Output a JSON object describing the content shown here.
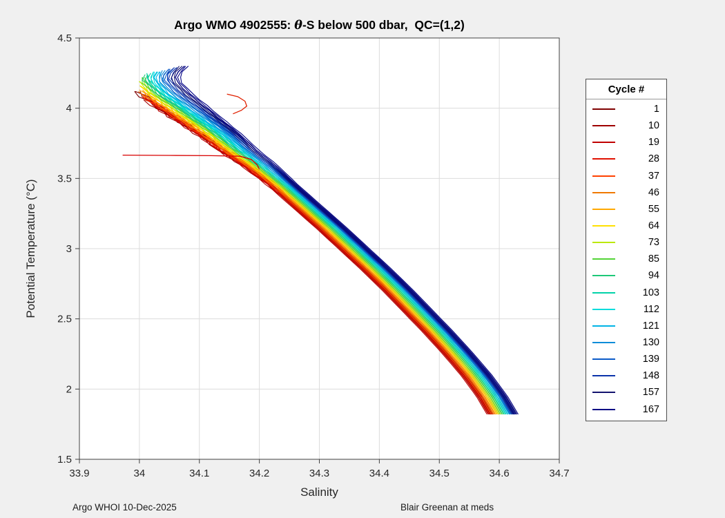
{
  "footer": {
    "left": "Argo WHOI 10-Dec-2025",
    "center_right": "Blair Greenan at meds"
  },
  "chart_data": {
    "type": "line",
    "title": "Argo WMO 4902555: θ-S below 500 dbar,  QC=(1,2)",
    "title_pre": "Argo WMO 4902555: ",
    "title_theta": "θ",
    "title_post": "-S below 500 dbar,  QC=(1,2)",
    "xlabel": "Salinity",
    "ylabel": "Potential Temperature (°C)",
    "xlim": [
      33.9,
      34.7
    ],
    "ylim": [
      1.5,
      4.5
    ],
    "grid": true,
    "legend_position": "right-outside",
    "legend_title": "Cycle #",
    "xticks": {
      "values": [
        33.9,
        34.0,
        34.1,
        34.2,
        34.3,
        34.4,
        34.5,
        34.6,
        34.7
      ],
      "labels": [
        "33.9",
        "34",
        "34.1",
        "34.2",
        "34.3",
        "34.4",
        "34.5",
        "34.6",
        "34.7"
      ]
    },
    "yticks": {
      "values": [
        1.5,
        2.0,
        2.5,
        3.0,
        3.5,
        4.0,
        4.5
      ],
      "labels": [
        "1.5",
        "2",
        "2.5",
        "3",
        "3.5",
        "4",
        "4.5"
      ]
    },
    "theta_grid": [
      4.3,
      4.25,
      4.2,
      4.1,
      4.0,
      3.9,
      3.8,
      3.7,
      3.6,
      3.45,
      3.3,
      3.15,
      3.0,
      2.85,
      2.7,
      2.55,
      2.4,
      2.25,
      2.1,
      1.95,
      1.82
    ],
    "s_ref": [
      34.02,
      34.008,
      34.005,
      34.028,
      34.062,
      34.096,
      34.13,
      34.16,
      34.195,
      34.24,
      34.28,
      34.32,
      34.358,
      34.396,
      34.432,
      34.466,
      34.5,
      34.532,
      34.562,
      34.588,
      34.606
    ],
    "series": [
      {
        "name": "1",
        "color": "#7F0000",
        "d_top": -0.028,
        "d_bot": -0.017,
        "top_theta": 4.12,
        "jitter": 0.007
      },
      {
        "name": "10",
        "color": "#9E0000",
        "d_top": -0.032,
        "d_bot": -0.021,
        "top_theta": 4.06,
        "jitter": 0.006
      },
      {
        "name": "19",
        "color": "#C00000",
        "d_top": -0.03,
        "d_bot": -0.023,
        "top_theta": 4.02,
        "jitter": 0.006
      },
      {
        "name": "28",
        "color": "#E01000",
        "d_top": -0.026,
        "d_bot": -0.019,
        "top_theta": 4.08,
        "jitter": 0.005
      },
      {
        "name": "37",
        "color": "#FF4000",
        "d_top": -0.024,
        "d_bot": -0.016,
        "top_theta": 4.1,
        "jitter": 0.005
      },
      {
        "name": "46",
        "color": "#F07800",
        "d_top": -0.02,
        "d_bot": -0.013,
        "top_theta": 4.12,
        "jitter": 0.004
      },
      {
        "name": "55",
        "color": "#FFA800",
        "d_top": -0.015,
        "d_bot": -0.01,
        "top_theta": 4.13,
        "jitter": 0.004
      },
      {
        "name": "64",
        "color": "#FFE000",
        "d_top": -0.01,
        "d_bot": -0.007,
        "top_theta": 4.16,
        "jitter": 0.003
      },
      {
        "name": "73",
        "color": "#BCE800",
        "d_top": -0.005,
        "d_bot": -0.004,
        "top_theta": 4.19,
        "jitter": 0.003
      },
      {
        "name": "85",
        "color": "#52D436",
        "d_top": 0.0,
        "d_bot": -0.001,
        "top_theta": 4.22,
        "jitter": 0.002
      },
      {
        "name": "94",
        "color": "#1EC878",
        "d_top": 0.005,
        "d_bot": 0.002,
        "top_theta": 4.24,
        "jitter": 0.002
      },
      {
        "name": "103",
        "color": "#00D2A8",
        "d_top": 0.01,
        "d_bot": 0.005,
        "top_theta": 4.25,
        "jitter": 0.002
      },
      {
        "name": "112",
        "color": "#00DCDC",
        "d_top": 0.016,
        "d_bot": 0.008,
        "top_theta": 4.26,
        "jitter": 0.0015
      },
      {
        "name": "121",
        "color": "#00B4E6",
        "d_top": 0.022,
        "d_bot": 0.011,
        "top_theta": 4.26,
        "jitter": 0.0015
      },
      {
        "name": "130",
        "color": "#0A8CD8",
        "d_top": 0.03,
        "d_bot": 0.014,
        "top_theta": 4.27,
        "jitter": 0.001
      },
      {
        "name": "139",
        "color": "#0A5AC8",
        "d_top": 0.037,
        "d_bot": 0.016,
        "top_theta": 4.28,
        "jitter": 0.001
      },
      {
        "name": "148",
        "color": "#0A32AA",
        "d_top": 0.044,
        "d_bot": 0.018,
        "top_theta": 4.29,
        "jitter": 0.001
      },
      {
        "name": "157",
        "color": "#12126E",
        "d_top": 0.051,
        "d_bot": 0.02,
        "top_theta": 4.3,
        "jitter": 0.001
      },
      {
        "name": "167",
        "color": "#000084",
        "d_top": 0.058,
        "d_bot": 0.022,
        "top_theta": 4.3,
        "jitter": 0.001
      }
    ],
    "extra_segments": [
      {
        "color": "#D80000",
        "points": [
          [
            33.972,
            3.666
          ],
          [
            34.05,
            3.664
          ],
          [
            34.12,
            3.662
          ],
          [
            34.168,
            3.658
          ],
          [
            34.186,
            3.636
          ],
          [
            34.196,
            3.6
          ],
          [
            34.2,
            3.565
          ]
        ]
      },
      {
        "color": "#E02000",
        "points": [
          [
            34.146,
            4.1
          ],
          [
            34.164,
            4.082
          ],
          [
            34.176,
            4.05
          ],
          [
            34.179,
            4.015
          ],
          [
            34.17,
            3.985
          ],
          [
            34.156,
            3.96
          ]
        ]
      }
    ]
  }
}
